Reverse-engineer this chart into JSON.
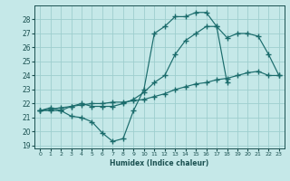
{
  "xlabel": "Humidex (Indice chaleur)",
  "bg_color": "#c5e8e8",
  "grid_color": "#9ecece",
  "line_color": "#1a6b6b",
  "xlim": [
    -0.5,
    23.5
  ],
  "ylim": [
    18.8,
    29.0
  ],
  "yticks": [
    19,
    20,
    21,
    22,
    23,
    24,
    25,
    26,
    27,
    28
  ],
  "xticks": [
    0,
    1,
    2,
    3,
    4,
    5,
    6,
    7,
    8,
    9,
    10,
    11,
    12,
    13,
    14,
    15,
    16,
    17,
    18,
    19,
    20,
    21,
    22,
    23
  ],
  "line1_x": [
    0,
    1,
    2,
    3,
    4,
    5,
    6,
    7,
    8,
    9,
    10,
    11,
    12,
    13,
    14,
    15,
    16,
    17,
    18
  ],
  "line1_y": [
    21.5,
    21.7,
    21.5,
    21.1,
    21.0,
    20.7,
    19.9,
    19.3,
    19.5,
    21.5,
    23.0,
    27.0,
    27.5,
    28.2,
    28.2,
    28.5,
    28.5,
    27.5,
    23.5
  ],
  "line2_x": [
    0,
    1,
    2,
    3,
    4,
    5,
    6,
    7,
    8,
    9,
    10,
    11,
    12,
    13,
    14,
    15,
    16,
    17,
    18,
    19,
    20,
    21,
    22,
    23
  ],
  "line2_y": [
    21.5,
    21.5,
    21.5,
    21.8,
    22.0,
    21.8,
    21.8,
    21.8,
    22.0,
    22.3,
    22.8,
    23.5,
    24.0,
    25.5,
    26.5,
    27.0,
    27.5,
    27.5,
    26.7,
    27.0,
    27.0,
    26.8,
    25.5,
    24.0
  ],
  "line3_x": [
    0,
    1,
    2,
    3,
    4,
    5,
    6,
    7,
    8,
    9,
    10,
    11,
    12,
    13,
    14,
    15,
    16,
    17,
    18,
    19,
    20,
    21,
    22,
    23
  ],
  "line3_y": [
    21.5,
    21.6,
    21.7,
    21.8,
    21.9,
    22.0,
    22.0,
    22.1,
    22.1,
    22.2,
    22.3,
    22.5,
    22.7,
    23.0,
    23.2,
    23.4,
    23.5,
    23.7,
    23.8,
    24.0,
    24.2,
    24.3,
    24.0,
    24.0
  ]
}
